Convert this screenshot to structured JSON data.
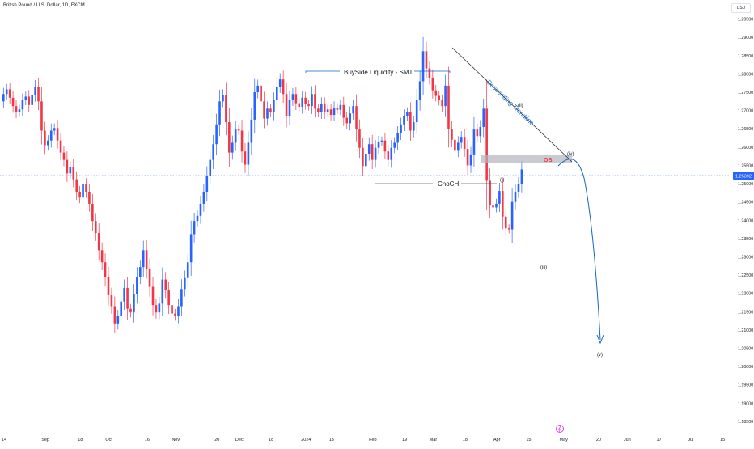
{
  "header": {
    "symbol_title": "British Pound / U.S. Dollar, 1D, FXCM",
    "currency_button": "USD"
  },
  "chart_data": {
    "type": "candlestick",
    "title": "British Pound / U.S. Dollar, 1D, FXCM",
    "y_ticks": [
      "1.29500",
      "1.29000",
      "1.28500",
      "1.28000",
      "1.27500",
      "1.27000",
      "1.26500",
      "1.26000",
      "1.25500",
      "1.25000",
      "1.24500",
      "1.24000",
      "1.23500",
      "1.23000",
      "1.22500",
      "1.22000",
      "1.21500",
      "1.21000",
      "1.20500",
      "1.20000",
      "1.19500",
      "1.19000",
      "1.18500"
    ],
    "ylim": [
      1.183,
      1.298
    ],
    "x_ticks": [
      {
        "label": "14",
        "i": 0
      },
      {
        "label": "Sep",
        "i": 13
      },
      {
        "label": "18",
        "i": 24
      },
      {
        "label": "Oct",
        "i": 33
      },
      {
        "label": "16",
        "i": 45
      },
      {
        "label": "Nov",
        "i": 54
      },
      {
        "label": "20",
        "i": 67
      },
      {
        "label": "Dec",
        "i": 74
      },
      {
        "label": "18",
        "i": 84
      },
      {
        "label": "2024",
        "i": 95
      },
      {
        "label": "15",
        "i": 103
      },
      {
        "label": "Feb",
        "i": 116
      },
      {
        "label": "19",
        "i": 126
      },
      {
        "label": "Mar",
        "i": 135
      },
      {
        "label": "18",
        "i": 145
      },
      {
        "label": "Apr",
        "i": 155
      },
      {
        "label": "15",
        "i": 165
      },
      {
        "label": "May",
        "i": 176
      },
      {
        "label": "20",
        "i": 187
      },
      {
        "label": "Jun",
        "i": 196
      },
      {
        "label": "17",
        "i": 206
      },
      {
        "label": "Jul",
        "i": 216
      },
      {
        "label": "15",
        "i": 226
      }
    ],
    "last_price": "1.25392",
    "last_price_value": 1.2539,
    "colors": {
      "up": "#2962ff",
      "down": "#f23645",
      "annotation": "#1565c0",
      "ob_zone": "#b2b5be",
      "ob_text": "#f23645",
      "price_tag": "#2962ff"
    },
    "closes": [
      1.2745,
      1.2758,
      1.2735,
      1.2712,
      1.2695,
      1.2703,
      1.2728,
      1.2738,
      1.2715,
      1.2742,
      1.2765,
      1.2725,
      1.2645,
      1.2605,
      1.2618,
      1.2645,
      1.2652,
      1.2618,
      1.2585,
      1.2565,
      1.2528,
      1.2545,
      1.2512,
      1.2478,
      1.2462,
      1.2498,
      1.2478,
      1.2445,
      1.2398,
      1.2365,
      1.2318,
      1.2285,
      1.2245,
      1.2195,
      1.2165,
      1.2118,
      1.2138,
      1.2178,
      1.2215,
      1.2158,
      1.2148,
      1.2198,
      1.2245,
      1.2272,
      1.2318,
      1.2268,
      1.2218,
      1.2168,
      1.2148,
      1.2172,
      1.2238,
      1.2208,
      1.2168,
      1.2145,
      1.2138,
      1.2165,
      1.2212,
      1.2242,
      1.2285,
      1.2362,
      1.2398,
      1.2412,
      1.2445,
      1.2478,
      1.2522,
      1.2565,
      1.2608,
      1.2662,
      1.2725,
      1.2742,
      1.2668,
      1.2585,
      1.2612,
      1.2648,
      1.2645,
      1.2588,
      1.2552,
      1.2612,
      1.2675,
      1.275,
      1.2768,
      1.2725,
      1.2678,
      1.2705,
      1.2695,
      1.2728,
      1.2765,
      1.2785,
      1.2745,
      1.2685,
      1.2728,
      1.2745,
      1.272,
      1.271,
      1.2735,
      1.2718,
      1.2712,
      1.2745,
      1.2705,
      1.2695,
      1.2718,
      1.2695,
      1.2703,
      1.2688,
      1.2708,
      1.2702,
      1.2715,
      1.268,
      1.2665,
      1.2692,
      1.2712,
      1.2648,
      1.2598,
      1.2548,
      1.2582,
      1.2608,
      1.2565,
      1.2598,
      1.2615,
      1.2618,
      1.2588,
      1.2565,
      1.2598,
      1.2612,
      1.2638,
      1.2662,
      1.2685,
      1.2695,
      1.2645,
      1.2668,
      1.2728,
      1.278,
      1.2862,
      1.2815,
      1.279,
      1.2755,
      1.274,
      1.2728,
      1.2712,
      1.2768,
      1.265,
      1.262,
      1.259,
      1.2612,
      1.2628,
      1.2595,
      1.255,
      1.258,
      1.2648,
      1.263,
      1.2655,
      1.2705,
      1.2508,
      1.244,
      1.2435,
      1.2445,
      1.248,
      1.241,
      1.2378,
      1.2375,
      1.245,
      1.2478,
      1.25,
      1.2539
    ]
  },
  "annotations": {
    "buyside": "BuySide Liquidity - SMT",
    "choch": "ChoCH",
    "trend": "Descending Trendline",
    "ob": "OB",
    "wave_i": "(i)",
    "wave_ii": "(ii)",
    "wave_iii": "(iii)",
    "wave_iv": "(iv)",
    "wave_v": "(v)"
  }
}
